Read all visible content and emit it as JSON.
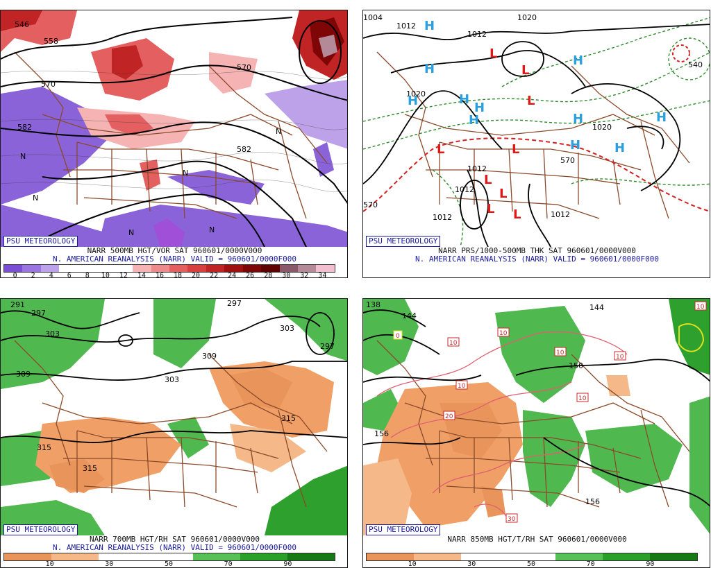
{
  "badge": "PSU METEOROLOGY",
  "panels": {
    "p1": {
      "title": "NARR 500MB HGT/VOR SAT 960601/0000V000",
      "subtitle": "N. AMERICAN REANALYSIS (NARR) VALID = 960601/0000F000",
      "colorbar_ticks": [
        "0",
        "2",
        "4",
        "6",
        "8",
        "10",
        "12",
        "14",
        "16",
        "18",
        "20",
        "22",
        "24",
        "26",
        "28",
        "30",
        "32",
        "34"
      ],
      "colorbar_colors": [
        "#7a4fd6",
        "#9a74e0",
        "#bda2ea",
        "#ffffff",
        "#ffffff",
        "#ffffff",
        "#ffffff",
        "#f6b3b3",
        "#ef8a8a",
        "#e46060",
        "#d84040",
        "#c02424",
        "#a01010",
        "#7e0606",
        "#5e0202",
        "#8a5a6a",
        "#b48a98",
        "#f2bfd0"
      ],
      "contour_labels": [
        "546",
        "558",
        "570",
        "570",
        "582",
        "582",
        "N",
        "N",
        "N",
        "N",
        "N",
        "N"
      ]
    },
    "p2": {
      "title": "NARR PRS/1000-500MB THK SAT 960601/0000V000",
      "subtitle": "N. AMERICAN REANALYSIS (NARR) VALID = 960601/0000F000",
      "isobar_labels": [
        "1004",
        "1012",
        "1012",
        "1020",
        "1020",
        "1012",
        "1012",
        "1012",
        "1012",
        "1020",
        "540",
        "570",
        "570"
      ],
      "pressure_centers": [
        "H",
        "H",
        "H",
        "H",
        "H",
        "H",
        "H",
        "H",
        "H",
        "H",
        "H",
        "L",
        "L",
        "L",
        "L",
        "L",
        "L",
        "L",
        "L",
        "L"
      ]
    },
    "p3": {
      "title": "NARR 700MB HGT/RH SAT 960601/0000V000",
      "subtitle": "N. AMERICAN REANALYSIS (NARR) VALID = 960601/0000F000",
      "colorbar_ticks": [
        "10",
        "30",
        "50",
        "70",
        "90"
      ],
      "colorbar_colors": [
        "#e8945a",
        "#f5b888",
        "#ffffff",
        "#ffffff",
        "#57c057",
        "#2aa02a",
        "#157a15"
      ],
      "contour_labels": [
        "291",
        "297",
        "303",
        "309",
        "303",
        "309",
        "303",
        "297",
        "315",
        "315",
        "315",
        "297"
      ]
    },
    "p4": {
      "title": "NARR 850MB HGT/T/RH SAT 960601/0000V000",
      "colorbar_ticks": [
        "10",
        "30",
        "50",
        "70",
        "90"
      ],
      "colorbar_colors": [
        "#e8945a",
        "#f5b888",
        "#ffffff",
        "#ffffff",
        "#57c057",
        "#2aa02a",
        "#157a15"
      ],
      "contour_labels": [
        "138",
        "144",
        "144",
        "150",
        "156",
        "156",
        "0",
        "10",
        "10",
        "10",
        "10",
        "10",
        "10",
        "10",
        "20",
        "30"
      ]
    }
  }
}
